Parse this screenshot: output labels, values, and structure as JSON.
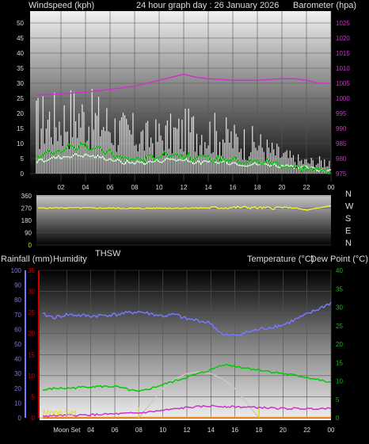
{
  "header": {
    "windspeed_label": "Windspeed (kph)",
    "title": "24 hour graph day : 26 January 2026",
    "barometer_label": "Barometer (hpa)"
  },
  "wind_direction_letters": [
    "N",
    "W",
    "S",
    "E",
    "N"
  ],
  "lower_header": {
    "rain_label": "Rainfall (mm)",
    "humidity_label": "Humidity",
    "thsw_label": "THSW",
    "temp_label": "Temperature (°C)",
    "dew_label": "Dew Point (°C)"
  },
  "moon_set_label": "Moon Set",
  "x_tick_labels": [
    "02",
    "04",
    "06",
    "08",
    "10",
    "12",
    "14",
    "16",
    "18",
    "20",
    "22",
    "00"
  ],
  "bottom_x_tick_labels": [
    "Moon Set",
    "04",
    "06",
    "08",
    "10",
    "12",
    "14",
    "16",
    "18",
    "20",
    "22",
    "00"
  ],
  "colors": {
    "gust": "#ffffff",
    "wind_avg": "#00cc00",
    "wind_light": "#c8f0c8",
    "barometer": "#cc33cc",
    "direction": "#ffff33",
    "humidity": "#7777ff",
    "temperature": "#00cc00",
    "dew_point": "#cc33cc",
    "solar": "#c8c8c8",
    "rain_axis": "#cc0000",
    "moon": "#dddd00"
  },
  "chart_data": [
    {
      "type": "line",
      "title": "24 hour graph day : 26 January 2026",
      "xlabel": "",
      "x_range_hours": [
        0,
        24
      ],
      "left_axis": {
        "label": "Windspeed (kph)",
        "ticks": [
          0,
          5,
          10,
          15,
          20,
          25,
          30,
          35,
          40,
          45,
          50
        ],
        "ylim": [
          0,
          50
        ]
      },
      "right_axis": {
        "label": "Barometer (hpa)",
        "ticks": [
          975,
          980,
          985,
          990,
          995,
          1000,
          1005,
          1010,
          1015,
          1020,
          1025
        ],
        "ylim": [
          975,
          1025
        ]
      },
      "series": [
        {
          "name": "Windspeed (kph)",
          "axis": "left",
          "x": [
            0,
            1,
            2,
            3,
            4,
            5,
            6,
            7,
            8,
            9,
            10,
            11,
            12,
            13,
            14,
            15,
            16,
            17,
            18,
            19,
            20,
            21,
            22,
            23,
            24
          ],
          "y": [
            22,
            24,
            23,
            26,
            24,
            23,
            21,
            18,
            17,
            15,
            16,
            17,
            18,
            19,
            18,
            17,
            15,
            14,
            13,
            10,
            8,
            6,
            5,
            5,
            6
          ]
        },
        {
          "name": "",
          "axis": "left",
          "x": [
            0,
            1,
            2,
            3,
            4,
            5,
            6,
            7,
            8,
            9,
            10,
            11,
            12,
            13,
            14,
            15,
            16,
            17,
            18,
            19,
            20,
            21,
            22,
            23,
            24
          ],
          "y": [
            5,
            7,
            8,
            9,
            9,
            8,
            7,
            5,
            5,
            5,
            6,
            7,
            6,
            5,
            5,
            5,
            5,
            4,
            4,
            4,
            3,
            2,
            2,
            1,
            1
          ]
        },
        {
          "name": "Barometer (hpa)",
          "axis": "right",
          "x": [
            0,
            2,
            4,
            6,
            8,
            10,
            11,
            12,
            13,
            14,
            16,
            18,
            20,
            21,
            22,
            23,
            24
          ],
          "y": [
            1001,
            1001.5,
            1002,
            1003,
            1004,
            1006,
            1007,
            1008,
            1007,
            1006.5,
            1006,
            1006,
            1006.5,
            1006.5,
            1006,
            1005,
            1005
          ]
        }
      ]
    },
    {
      "type": "line",
      "title": "",
      "left_axis": {
        "ticks": [
          0,
          90,
          180,
          270,
          360
        ],
        "ylim": [
          0,
          360
        ]
      },
      "right_labels": [
        "N",
        "W",
        "S",
        "E",
        "N"
      ],
      "series": [
        {
          "name": "",
          "x": [
            0,
            2,
            4,
            6,
            8,
            10,
            12,
            14,
            16,
            17,
            18,
            19,
            20,
            21,
            22,
            23,
            24
          ],
          "y": [
            270,
            272,
            271,
            270,
            268,
            270,
            270,
            272,
            274,
            276,
            272,
            270,
            275,
            272,
            255,
            270,
            290
          ]
        }
      ]
    },
    {
      "type": "line",
      "title": "",
      "axes": {
        "humidity": {
          "label": "Humidity",
          "ticks": [
            0,
            10,
            20,
            30,
            40,
            50,
            60,
            70,
            80,
            90,
            100
          ],
          "ylim": [
            0,
            100
          ]
        },
        "rainfall": {
          "label": "Rainfall (mm)",
          "ticks": [
            0,
            5,
            10,
            15,
            20,
            25,
            30,
            35
          ],
          "ylim": [
            0,
            35
          ]
        },
        "temperature": {
          "label": "Temperature (°C)",
          "ticks": [
            0,
            5,
            10,
            15,
            20,
            25,
            30,
            35,
            40
          ],
          "ylim": [
            0,
            40
          ]
        }
      },
      "series": [
        {
          "name": "Humidity",
          "axis": "humidity",
          "x": [
            0,
            1,
            2,
            4,
            6,
            8,
            10,
            11,
            12,
            13,
            14,
            15,
            16,
            18,
            20,
            22,
            24
          ],
          "y": [
            70,
            68,
            70,
            69,
            70,
            72,
            69,
            70,
            67,
            66,
            64,
            56,
            56,
            60,
            63,
            70,
            78
          ]
        },
        {
          "name": "Temperature (°C)",
          "axis": "temperature",
          "x": [
            0,
            1,
            2,
            4,
            6,
            8,
            9,
            10,
            11,
            12,
            13,
            14,
            15,
            16,
            17,
            18,
            20,
            22,
            24
          ],
          "y": [
            7.5,
            8,
            8,
            8.5,
            8.5,
            7,
            8,
            9,
            10,
            11,
            12,
            13,
            14.5,
            14,
            13.5,
            13,
            12,
            11,
            9.5
          ]
        },
        {
          "name": "Dew Point (°C)",
          "axis": "temperature",
          "x": [
            0,
            4,
            8,
            10,
            12,
            14,
            16,
            18,
            20,
            22,
            24
          ],
          "y": [
            0.5,
            0.8,
            1.3,
            2,
            2.8,
            3.2,
            3,
            2.8,
            2.5,
            2.5,
            2.6
          ]
        },
        {
          "name": "THSW",
          "axis": "temperature",
          "x": [
            8,
            9,
            10,
            11,
            12,
            13,
            14,
            15,
            16,
            17,
            18
          ],
          "y": [
            0,
            4,
            8,
            10.5,
            12,
            12.5,
            12,
            10.5,
            8,
            4,
            0
          ]
        },
        {
          "name": "Rainfall (mm)",
          "axis": "rainfall",
          "x": [
            0,
            24
          ],
          "y": [
            0,
            0
          ]
        }
      ]
    }
  ]
}
